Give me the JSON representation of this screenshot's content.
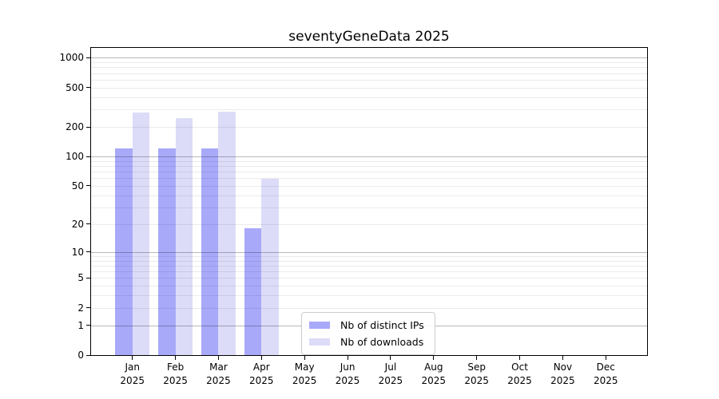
{
  "title": "seventyGeneData 2025",
  "chart_data": {
    "type": "bar",
    "title": "seventyGeneData 2025",
    "categories": [
      "Jan\n2025",
      "Feb\n2025",
      "Mar\n2025",
      "Apr\n2025",
      "May\n2025",
      "Jun\n2025",
      "Jul\n2025",
      "Aug\n2025",
      "Sep\n2025",
      "Oct\n2025",
      "Nov\n2025",
      "Dec\n2025"
    ],
    "series": [
      {
        "name": "Nb of distinct IPs",
        "color": "#a9a9fa",
        "values": [
          120,
          122,
          121,
          18,
          0,
          0,
          0,
          0,
          0,
          0,
          0,
          0
        ]
      },
      {
        "name": "Nb of downloads",
        "color": "#dcdcf8",
        "values": [
          281,
          244,
          285,
          59,
          0,
          0,
          0,
          0,
          0,
          0,
          0,
          0
        ]
      }
    ],
    "xlabel": "",
    "ylabel": "",
    "yscale": "log10(1+y)",
    "yticks": [
      0,
      1,
      2,
      5,
      10,
      20,
      50,
      100,
      200,
      500,
      1000
    ],
    "ylim": [
      0,
      1260
    ],
    "grid": "horizontal major (1,10,100,1000) + minor log decades",
    "legend_position": "inside, lower center"
  },
  "colors": {
    "background": "#ffffff",
    "axis": "#000000",
    "major_grid": "rgba(0,0,0,0.28)",
    "minor_grid": "rgba(0,0,0,0.08)",
    "legend_border": "#cccccc"
  }
}
